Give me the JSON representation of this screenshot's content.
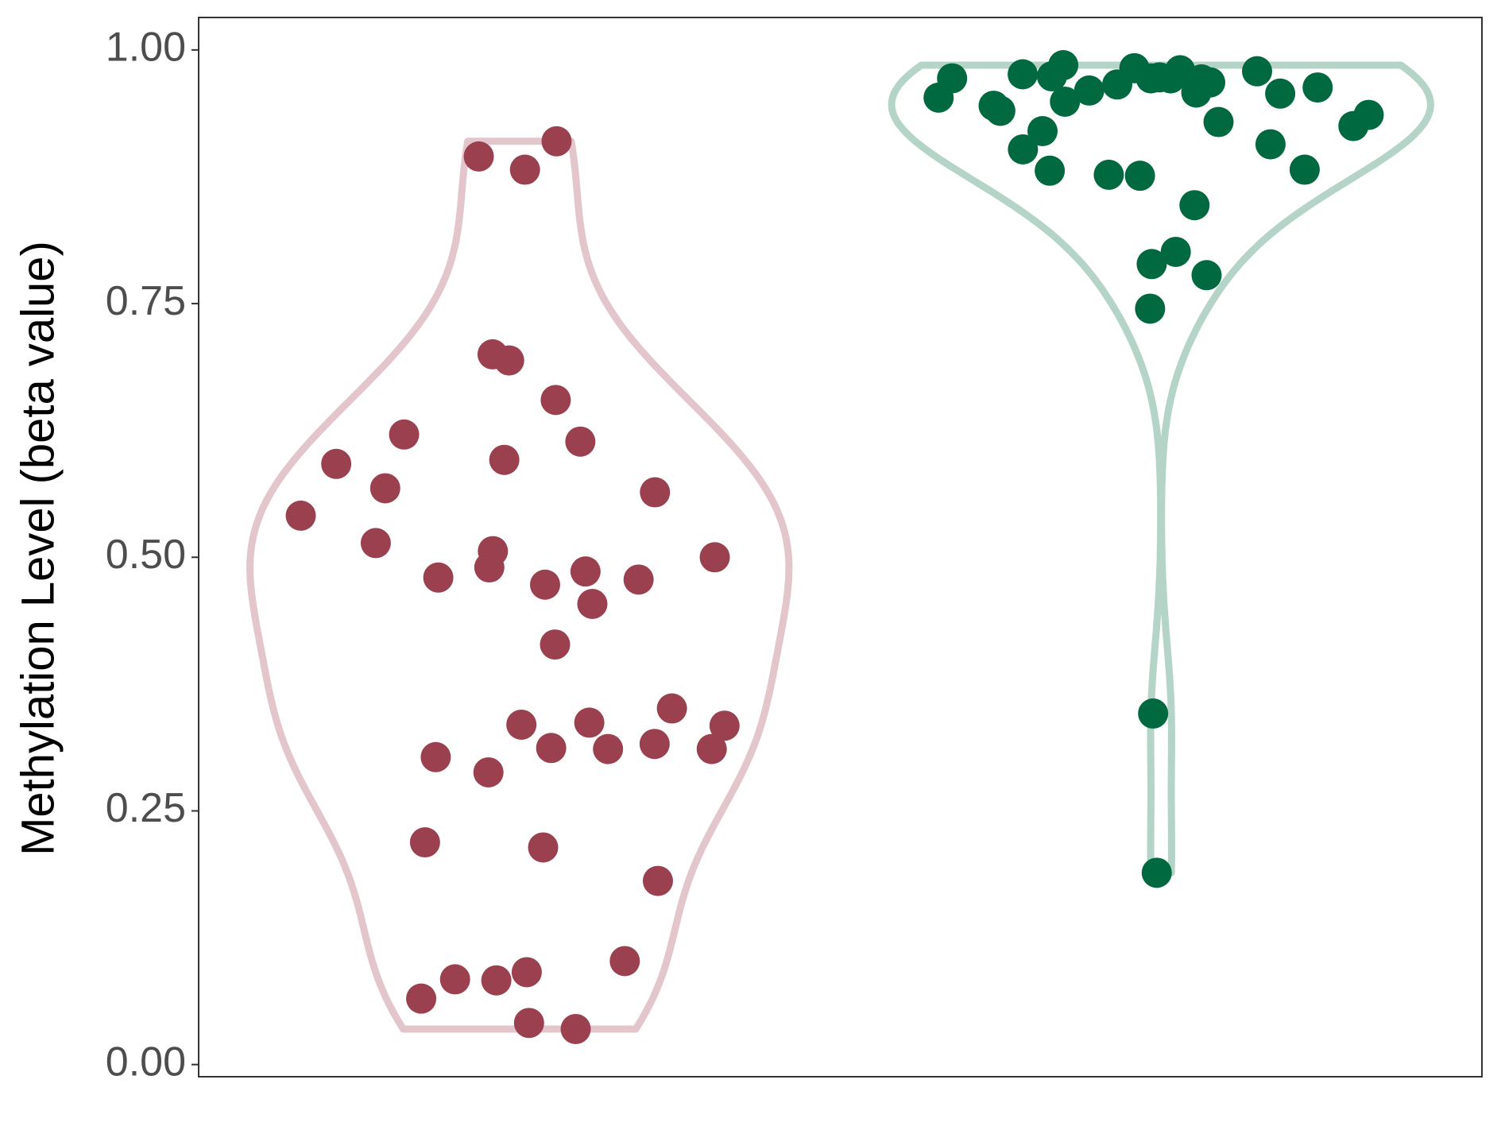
{
  "chart_data": {
    "type": "violin",
    "y_label": "Methylation Level (beta value)",
    "ylim": [
      -0.012,
      1.032
    ],
    "yticks": [
      {
        "value": 0,
        "label": "0.00"
      },
      {
        "value": 0.25,
        "label": "0.25"
      },
      {
        "value": 0.5,
        "label": "0.50"
      },
      {
        "value": 0.75,
        "label": "0.75"
      },
      {
        "value": 1,
        "label": "1.00"
      }
    ],
    "grid": false,
    "groups": [
      {
        "color": "#9b404f",
        "violin_color": "#e2c6cb",
        "values": [
          0.91,
          0.895,
          0.882,
          0.7,
          0.694,
          0.655,
          0.621,
          0.614,
          0.596,
          0.592,
          0.568,
          0.564,
          0.541,
          0.514,
          0.506,
          0.5,
          0.49,
          0.486,
          0.48,
          0.478,
          0.473,
          0.454,
          0.414,
          0.351,
          0.337,
          0.335,
          0.334,
          0.316,
          0.312,
          0.311,
          0.311,
          0.303,
          0.288,
          0.219,
          0.214,
          0.181,
          0.102,
          0.091,
          0.084,
          0.083,
          0.065,
          0.041,
          0.035
        ]
      },
      {
        "color": "#006940",
        "violin_color": "#b5d4c8",
        "values": [
          0.985,
          0.982,
          0.98,
          0.979,
          0.976,
          0.974,
          0.973,
          0.972,
          0.972,
          0.972,
          0.971,
          0.968,
          0.966,
          0.963,
          0.96,
          0.958,
          0.957,
          0.953,
          0.949,
          0.945,
          0.94,
          0.936,
          0.929,
          0.925,
          0.92,
          0.907,
          0.902,
          0.882,
          0.881,
          0.877,
          0.876,
          0.847,
          0.801,
          0.789,
          0.778,
          0.745,
          0.346,
          0.189
        ]
      }
    ]
  }
}
